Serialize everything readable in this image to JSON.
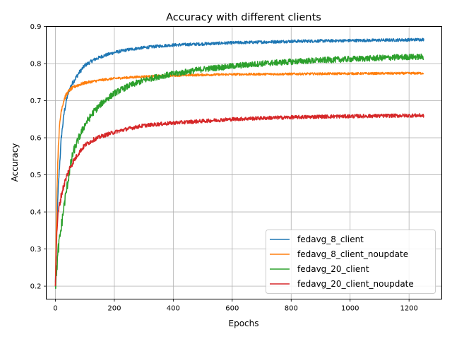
{
  "chart_data": {
    "type": "line",
    "title": "Accuracy with different clients",
    "xlabel": "Epochs",
    "ylabel": "Accuracy",
    "xlim": [
      -31,
      1311
    ],
    "ylim": [
      0.165,
      0.9
    ],
    "x_ticks": [
      0,
      200,
      400,
      600,
      800,
      1000,
      1200
    ],
    "x_tick_labels": [
      "0",
      "200",
      "400",
      "600",
      "800",
      "1000",
      "1200"
    ],
    "y_ticks": [
      0.2,
      0.3,
      0.4,
      0.5,
      0.6,
      0.7,
      0.8,
      0.9
    ],
    "y_tick_labels": [
      "0.2",
      "0.3",
      "0.4",
      "0.5",
      "0.6",
      "0.7",
      "0.8",
      "0.9"
    ],
    "grid": true,
    "legend_position": "lower-right",
    "series": [
      {
        "name": "fedavg_8_client",
        "color": "#1f77b4",
        "noise": 0.004,
        "x": [
          0,
          5,
          10,
          20,
          30,
          40,
          50,
          60,
          80,
          100,
          130,
          160,
          200,
          250,
          300,
          350,
          400,
          500,
          600,
          700,
          800,
          900,
          1000,
          1100,
          1200,
          1250
        ],
        "y": [
          0.21,
          0.36,
          0.47,
          0.6,
          0.67,
          0.71,
          0.735,
          0.75,
          0.775,
          0.795,
          0.81,
          0.82,
          0.83,
          0.838,
          0.843,
          0.847,
          0.85,
          0.853,
          0.856,
          0.858,
          0.86,
          0.861,
          0.862,
          0.863,
          0.864,
          0.865
        ]
      },
      {
        "name": "fedavg_8_client_noupdate",
        "color": "#ff7f0e",
        "noise": 0.003,
        "x": [
          0,
          5,
          10,
          15,
          20,
          30,
          40,
          50,
          70,
          100,
          150,
          200,
          300,
          400,
          600,
          800,
          1000,
          1250
        ],
        "y": [
          0.2,
          0.45,
          0.58,
          0.64,
          0.675,
          0.705,
          0.72,
          0.73,
          0.74,
          0.748,
          0.755,
          0.76,
          0.765,
          0.768,
          0.771,
          0.772,
          0.773,
          0.774
        ]
      },
      {
        "name": "fedavg_20_client",
        "color": "#2ca02c",
        "noise": 0.008,
        "x": [
          0,
          10,
          20,
          30,
          40,
          50,
          60,
          80,
          100,
          130,
          160,
          200,
          250,
          300,
          350,
          400,
          500,
          600,
          700,
          800,
          900,
          1000,
          1100,
          1200,
          1250
        ],
        "y": [
          0.2,
          0.3,
          0.36,
          0.42,
          0.47,
          0.52,
          0.56,
          0.6,
          0.635,
          0.67,
          0.695,
          0.72,
          0.74,
          0.755,
          0.765,
          0.772,
          0.785,
          0.793,
          0.8,
          0.805,
          0.809,
          0.812,
          0.815,
          0.818,
          0.818
        ]
      },
      {
        "name": "fedavg_20_client_noupdate",
        "color": "#d62728",
        "noise": 0.005,
        "x": [
          0,
          5,
          10,
          20,
          30,
          40,
          50,
          60,
          80,
          100,
          130,
          160,
          200,
          250,
          300,
          400,
          500,
          600,
          700,
          800,
          900,
          1000,
          1100,
          1200,
          1250
        ],
        "y": [
          0.2,
          0.35,
          0.4,
          0.445,
          0.475,
          0.5,
          0.52,
          0.535,
          0.56,
          0.58,
          0.595,
          0.605,
          0.615,
          0.625,
          0.633,
          0.64,
          0.645,
          0.65,
          0.653,
          0.655,
          0.657,
          0.658,
          0.659,
          0.66,
          0.66
        ]
      }
    ]
  }
}
